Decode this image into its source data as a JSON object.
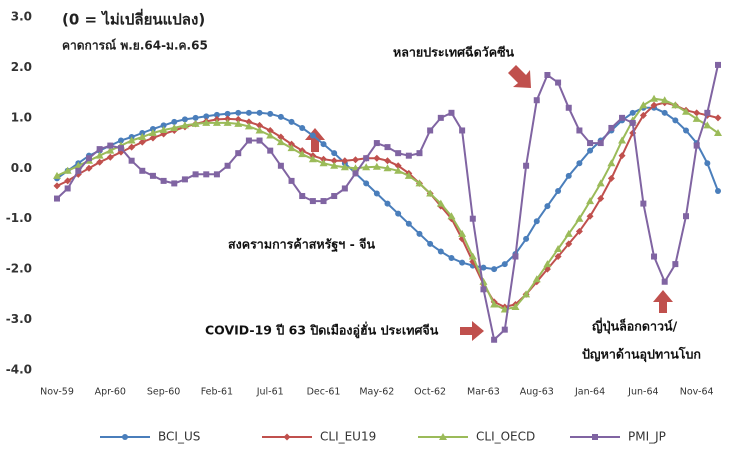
{
  "chart_data": {
    "type": "line",
    "title": "(0 = ไม่เปลี่ยนแปลง)",
    "subtitle": "คาดการณ์ พ.ย.64-ม.ค.65",
    "annotations": [
      "หลายประเทศฉีดวัคซีน",
      "สงครามการค้าสหรัฐฯ - จีน",
      "COVID-19 ปี 63 ปิดเมืองอู่ฮั่น ประเทศจีน",
      "ญี่ปุ่นล็อกดาวน์/",
      "ปัญหาด้านอุปทานโบก"
    ],
    "categories": [
      "Nov-59",
      null,
      null,
      null,
      null,
      "Apr-60",
      null,
      null,
      null,
      null,
      "Sep-60",
      null,
      null,
      null,
      null,
      "Feb-61",
      null,
      null,
      null,
      null,
      "Jul-61",
      null,
      null,
      null,
      null,
      "Dec-61",
      null,
      null,
      null,
      null,
      "May-62",
      null,
      null,
      null,
      null,
      "Oct-62",
      null,
      null,
      null,
      null,
      "Mar-63",
      null,
      null,
      null,
      null,
      "Aug-63",
      null,
      null,
      null,
      null,
      "Jan-64",
      null,
      null,
      null,
      null,
      "Jun-64",
      null,
      null,
      null,
      null,
      "Nov-64",
      null,
      null
    ],
    "ylim": [
      -4,
      3
    ],
    "yticks": [
      {
        "value": 3,
        "label": "3.0"
      },
      {
        "value": 2,
        "label": "2.0"
      },
      {
        "value": 1,
        "label": "1.0"
      },
      {
        "value": 0,
        "label": "0.0"
      },
      {
        "value": -1,
        "label": "-1.0"
      },
      {
        "value": -2,
        "label": "-2.0"
      },
      {
        "value": -3,
        "label": "-3.0"
      },
      {
        "value": -4,
        "label": "-4.0"
      }
    ],
    "grid": false,
    "legend": "bottom",
    "series": [
      {
        "name": "BCI_US",
        "color": "#4a7ebb",
        "marker": "circle",
        "values": [
          -0.2,
          -0.05,
          0.1,
          0.25,
          0.35,
          0.45,
          0.55,
          0.62,
          0.7,
          0.78,
          0.85,
          0.92,
          0.97,
          1.0,
          1.03,
          1.06,
          1.08,
          1.1,
          1.1,
          1.1,
          1.08,
          1.02,
          0.92,
          0.8,
          0.65,
          0.48,
          0.3,
          0.1,
          -0.1,
          -0.3,
          -0.5,
          -0.7,
          -0.9,
          -1.1,
          -1.3,
          -1.5,
          -1.65,
          -1.78,
          -1.87,
          -1.93,
          -1.97,
          -2.0,
          -1.9,
          -1.7,
          -1.4,
          -1.05,
          -0.75,
          -0.45,
          -0.15,
          0.1,
          0.35,
          0.55,
          0.75,
          0.95,
          1.1,
          1.2,
          1.2,
          1.1,
          0.95,
          0.75,
          0.5,
          0.1,
          -0.45
        ]
      },
      {
        "name": "CLI_EU19",
        "color": "#c0504d",
        "marker": "diamond",
        "values": [
          -0.35,
          -0.25,
          -0.12,
          0,
          0.12,
          0.22,
          0.32,
          0.42,
          0.52,
          0.6,
          0.68,
          0.75,
          0.82,
          0.88,
          0.93,
          0.97,
          0.98,
          0.97,
          0.92,
          0.85,
          0.75,
          0.62,
          0.48,
          0.35,
          0.25,
          0.18,
          0.15,
          0.15,
          0.17,
          0.2,
          0.2,
          0.15,
          0.05,
          -0.1,
          -0.3,
          -0.5,
          -0.75,
          -1.0,
          -1.4,
          -1.85,
          -2.3,
          -2.65,
          -2.75,
          -2.7,
          -2.5,
          -2.25,
          -2.0,
          -1.75,
          -1.5,
          -1.25,
          -0.95,
          -0.6,
          -0.2,
          0.25,
          0.7,
          1.05,
          1.25,
          1.3,
          1.25,
          1.15,
          1.1,
          1.05,
          1.0
        ]
      },
      {
        "name": "CLI_OECD",
        "color": "#9bbb59",
        "marker": "triangle",
        "values": [
          -0.15,
          -0.05,
          0.05,
          0.15,
          0.25,
          0.35,
          0.45,
          0.55,
          0.62,
          0.7,
          0.76,
          0.8,
          0.85,
          0.88,
          0.9,
          0.9,
          0.9,
          0.88,
          0.83,
          0.75,
          0.65,
          0.52,
          0.4,
          0.28,
          0.18,
          0.1,
          0.05,
          0.02,
          0,
          0.02,
          0.03,
          0,
          -0.05,
          -0.15,
          -0.3,
          -0.5,
          -0.7,
          -0.95,
          -1.3,
          -1.75,
          -2.25,
          -2.7,
          -2.8,
          -2.75,
          -2.5,
          -2.2,
          -1.9,
          -1.6,
          -1.3,
          -1.0,
          -0.65,
          -0.3,
          0.1,
          0.55,
          0.95,
          1.25,
          1.38,
          1.35,
          1.25,
          1.12,
          0.98,
          0.85,
          0.7
        ]
      },
      {
        "name": "PMI_JP",
        "color": "#8064a2",
        "marker": "square",
        "values": [
          -0.6,
          -0.4,
          -0.05,
          0.2,
          0.38,
          0.45,
          0.4,
          0.15,
          -0.05,
          -0.15,
          -0.25,
          -0.3,
          -0.22,
          -0.12,
          -0.12,
          -0.12,
          0.05,
          0.3,
          0.55,
          0.55,
          0.35,
          0.05,
          -0.25,
          -0.55,
          -0.65,
          -0.65,
          -0.55,
          -0.4,
          -0.1,
          0.2,
          0.5,
          0.42,
          0.3,
          0.25,
          0.3,
          0.75,
          1.0,
          1.1,
          0.75,
          -1.0,
          -2.4,
          -3.4,
          -3.2,
          -1.75,
          0.05,
          1.35,
          1.85,
          1.7,
          1.2,
          0.75,
          0.5,
          0.5,
          0.8,
          1.0,
          0.9,
          -0.7,
          -1.75,
          -2.25,
          -1.9,
          -0.95,
          0.45,
          1.1,
          2.05
        ]
      }
    ]
  }
}
